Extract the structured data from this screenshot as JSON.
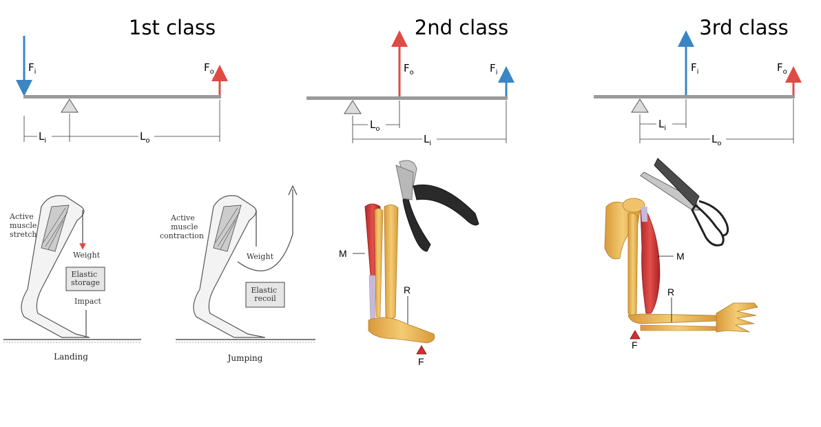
{
  "panels": [
    {
      "title": "1st class",
      "effort": {
        "sym": "F",
        "sub": "i"
      },
      "load": {
        "sym": "F",
        "sub": "o"
      },
      "arm_effort": {
        "sym": "L",
        "sub": "i"
      },
      "arm_load": {
        "sym": "L",
        "sub": "o"
      }
    },
    {
      "title": "2nd class",
      "load": {
        "sym": "F",
        "sub": "o"
      },
      "effort": {
        "sym": "F",
        "sub": "i"
      },
      "arm_load": {
        "sym": "L",
        "sub": "o"
      },
      "arm_effort": {
        "sym": "L",
        "sub": "i"
      }
    },
    {
      "title": "3rd class",
      "effort": {
        "sym": "F",
        "sub": "i"
      },
      "load": {
        "sym": "F",
        "sub": "o"
      },
      "arm_effort": {
        "sym": "L",
        "sub": "i"
      },
      "arm_load": {
        "sym": "L",
        "sub": "o"
      }
    }
  ],
  "leg_diagram": {
    "landing": {
      "label_active": [
        "Active",
        "muscle",
        "stretch"
      ],
      "weight": "Weight",
      "storage": [
        "Elastic",
        "storage"
      ],
      "impact": "Impact",
      "caption": "Landing"
    },
    "jumping": {
      "label_active": [
        "Active",
        "muscle",
        "contraction"
      ],
      "weight": "Weight",
      "recoil": [
        "Elastic",
        "recoil"
      ],
      "caption": "Jumping"
    }
  },
  "foot_diagram": {
    "muscle": "M",
    "resistance": "R",
    "fulcrum": "F"
  },
  "arm_diagram": {
    "muscle": "M",
    "resistance": "R",
    "fulcrum": "F"
  },
  "colors": {
    "effort": "#3a85c4",
    "load": "#e04a44",
    "bar": "#999999",
    "bone": "#e8b552",
    "muscle": "#d83a36",
    "fulcrum_mark": "#d03030"
  }
}
